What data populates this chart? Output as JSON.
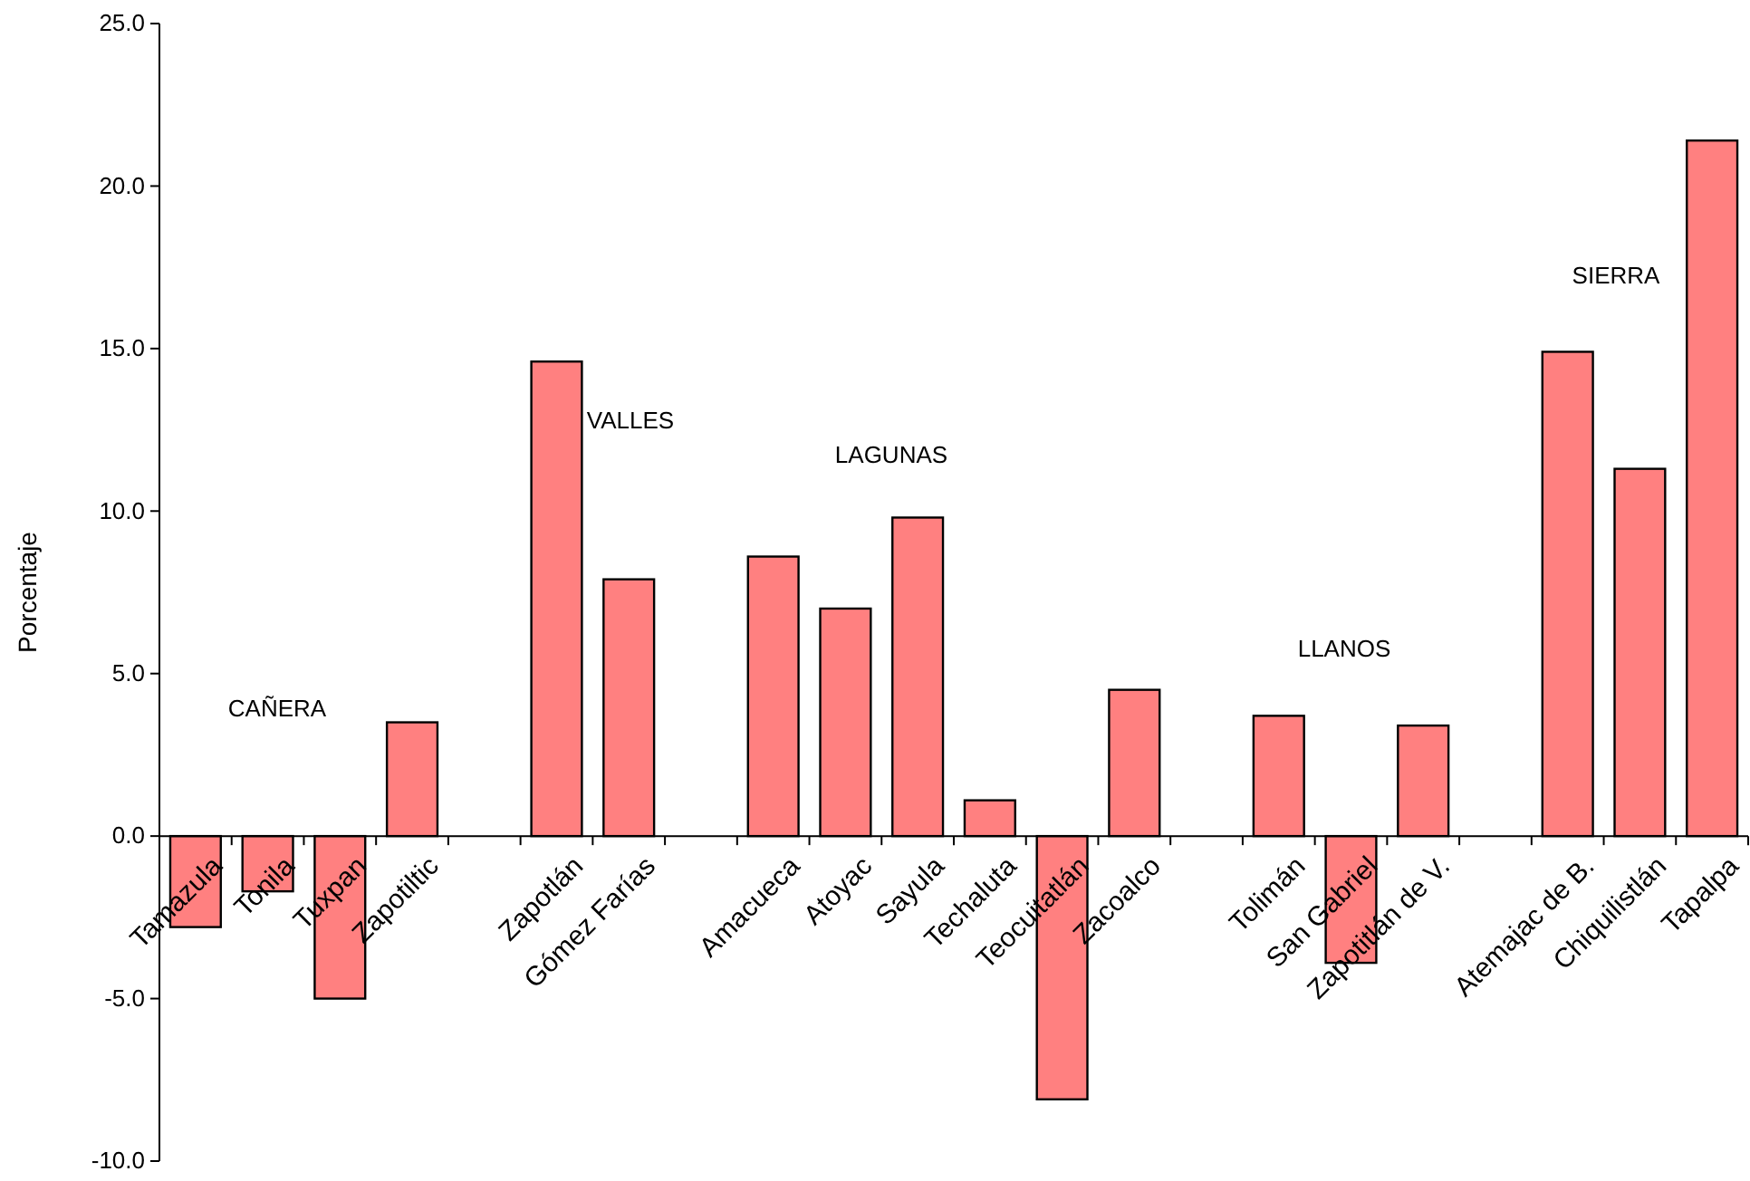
{
  "chart_data": {
    "type": "bar",
    "ylabel": "Porcentaje",
    "categories": [
      "Tamazula",
      "Tonila",
      "Tuxpan",
      "Zapotiltic",
      null,
      "Zapotlán",
      "Gómez Farías",
      null,
      "Amacueca",
      "Atoyac",
      "Sayula",
      "Techaluta",
      "Teocuitatlán",
      "Zacoalco",
      null,
      "Tolimán",
      "San Gabriel",
      "Zapotitlán de V.",
      null,
      "Atemajac de B.",
      "Chiquilistlán",
      "Tapalpa"
    ],
    "values": [
      -2.8,
      -1.7,
      -5.0,
      3.5,
      null,
      14.6,
      7.9,
      null,
      8.6,
      7.0,
      9.8,
      1.1,
      -8.1,
      4.5,
      null,
      3.7,
      -3.9,
      3.4,
      null,
      14.9,
      11.3,
      21.4
    ],
    "color": "#ff8080",
    "ylim": [
      -10,
      25
    ],
    "yticks": [
      {
        "value": -10,
        "label": "-10.0"
      },
      {
        "value": -5,
        "label": "-5.0"
      },
      {
        "value": 0,
        "label": "0.0"
      },
      {
        "value": 5,
        "label": "5.0"
      },
      {
        "value": 10,
        "label": "10.0"
      },
      {
        "value": 15,
        "label": "15.0"
      },
      {
        "value": 20,
        "label": "20.0"
      },
      {
        "value": 25,
        "label": "25.0"
      }
    ],
    "annotations": [
      "CAÑERA",
      "VALLES",
      "LAGUNAS",
      "LLANOS",
      "SIERRA"
    ]
  }
}
